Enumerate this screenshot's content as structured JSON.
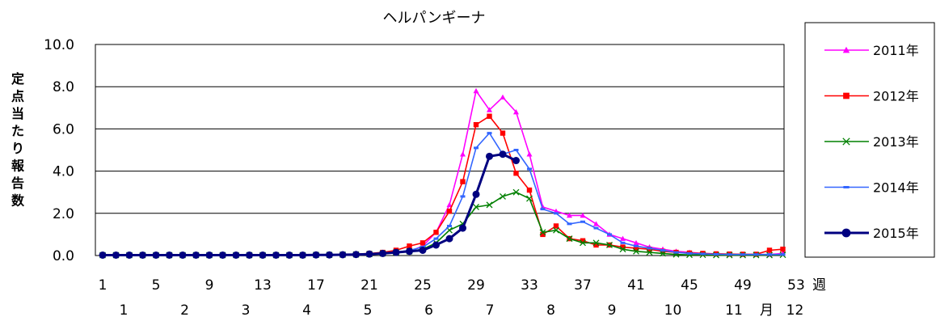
{
  "chart_data": {
    "type": "line",
    "title": "ヘルパンギーナ",
    "ylabel": "定点当たり報告数",
    "xlabel": "週",
    "month_label": "月",
    "ylim": [
      0,
      10
    ],
    "yticks": [
      "0.0",
      "2.0",
      "4.0",
      "6.0",
      "8.0",
      "10.0"
    ],
    "xticks": [
      "1",
      "5",
      "9",
      "13",
      "17",
      "21",
      "25",
      "29",
      "33",
      "37",
      "41",
      "45",
      "49",
      "53"
    ],
    "months": [
      "1",
      "2",
      "3",
      "4",
      "5",
      "6",
      "7",
      "8",
      "9",
      "10",
      "11",
      "12"
    ],
    "grid": true,
    "legend_position": "right",
    "series": [
      {
        "name": "2011年",
        "color": "#ff00ff",
        "marker": "triangle",
        "values": [
          0.02,
          0.02,
          0.02,
          0.02,
          0.02,
          0.02,
          0.02,
          0.02,
          0.02,
          0.02,
          0.02,
          0.02,
          0.02,
          0.02,
          0.02,
          0.02,
          0.03,
          0.03,
          0.04,
          0.05,
          0.07,
          0.1,
          0.15,
          0.2,
          0.45,
          1.1,
          2.4,
          4.8,
          7.8,
          6.9,
          7.5,
          6.8,
          4.8,
          2.3,
          2.1,
          1.9,
          1.9,
          1.5,
          1.0,
          0.8,
          0.6,
          0.4,
          0.3,
          0.2,
          0.15,
          0.1,
          0.08,
          0.06,
          0.05,
          0.05,
          0.05,
          0.1
        ]
      },
      {
        "name": "2012年",
        "color": "#ff0000",
        "marker": "square",
        "values": [
          0.02,
          0.02,
          0.02,
          0.02,
          0.02,
          0.02,
          0.02,
          0.02,
          0.02,
          0.02,
          0.02,
          0.02,
          0.02,
          0.02,
          0.02,
          0.02,
          0.03,
          0.03,
          0.05,
          0.07,
          0.1,
          0.15,
          0.25,
          0.45,
          0.6,
          1.1,
          2.1,
          3.5,
          6.2,
          6.6,
          5.8,
          3.9,
          3.1,
          1.0,
          1.4,
          0.8,
          0.7,
          0.5,
          0.5,
          0.4,
          0.35,
          0.3,
          0.2,
          0.15,
          0.12,
          0.1,
          0.08,
          0.07,
          0.06,
          0.06,
          0.25,
          0.3
        ]
      },
      {
        "name": "2013年",
        "color": "#008000",
        "marker": "x",
        "values": [
          0.02,
          0.02,
          0.02,
          0.02,
          0.02,
          0.02,
          0.02,
          0.02,
          0.02,
          0.02,
          0.02,
          0.02,
          0.02,
          0.02,
          0.02,
          0.02,
          0.03,
          0.03,
          0.04,
          0.05,
          0.07,
          0.1,
          0.15,
          0.2,
          0.3,
          0.6,
          1.2,
          1.5,
          2.3,
          2.4,
          2.8,
          3.0,
          2.7,
          1.1,
          1.2,
          0.8,
          0.6,
          0.6,
          0.5,
          0.3,
          0.2,
          0.15,
          0.1,
          0.05,
          0.03,
          0.03,
          0.02,
          0.02,
          0.02,
          0.02,
          0.02,
          0.03
        ]
      },
      {
        "name": "2014年",
        "color": "#3366ff",
        "marker": "dash",
        "values": [
          0.02,
          0.02,
          0.02,
          0.02,
          0.02,
          0.02,
          0.02,
          0.02,
          0.02,
          0.02,
          0.02,
          0.02,
          0.02,
          0.02,
          0.02,
          0.02,
          0.03,
          0.03,
          0.04,
          0.05,
          0.08,
          0.1,
          0.15,
          0.25,
          0.4,
          0.8,
          1.4,
          2.8,
          5.1,
          5.8,
          4.8,
          5.0,
          4.1,
          2.2,
          2.0,
          1.5,
          1.6,
          1.3,
          1.0,
          0.6,
          0.45,
          0.35,
          0.25,
          0.15,
          0.1,
          0.08,
          0.06,
          0.05,
          0.05,
          0.05,
          0.05,
          0.05
        ]
      },
      {
        "name": "2015年",
        "color": "#000080",
        "marker": "circle",
        "values": [
          0.02,
          0.02,
          0.02,
          0.02,
          0.02,
          0.02,
          0.02,
          0.02,
          0.02,
          0.02,
          0.02,
          0.02,
          0.02,
          0.02,
          0.02,
          0.02,
          0.03,
          0.03,
          0.04,
          0.05,
          0.07,
          0.1,
          0.15,
          0.2,
          0.25,
          0.5,
          0.8,
          1.3,
          2.9,
          4.7,
          4.8,
          4.5
        ]
      }
    ]
  }
}
